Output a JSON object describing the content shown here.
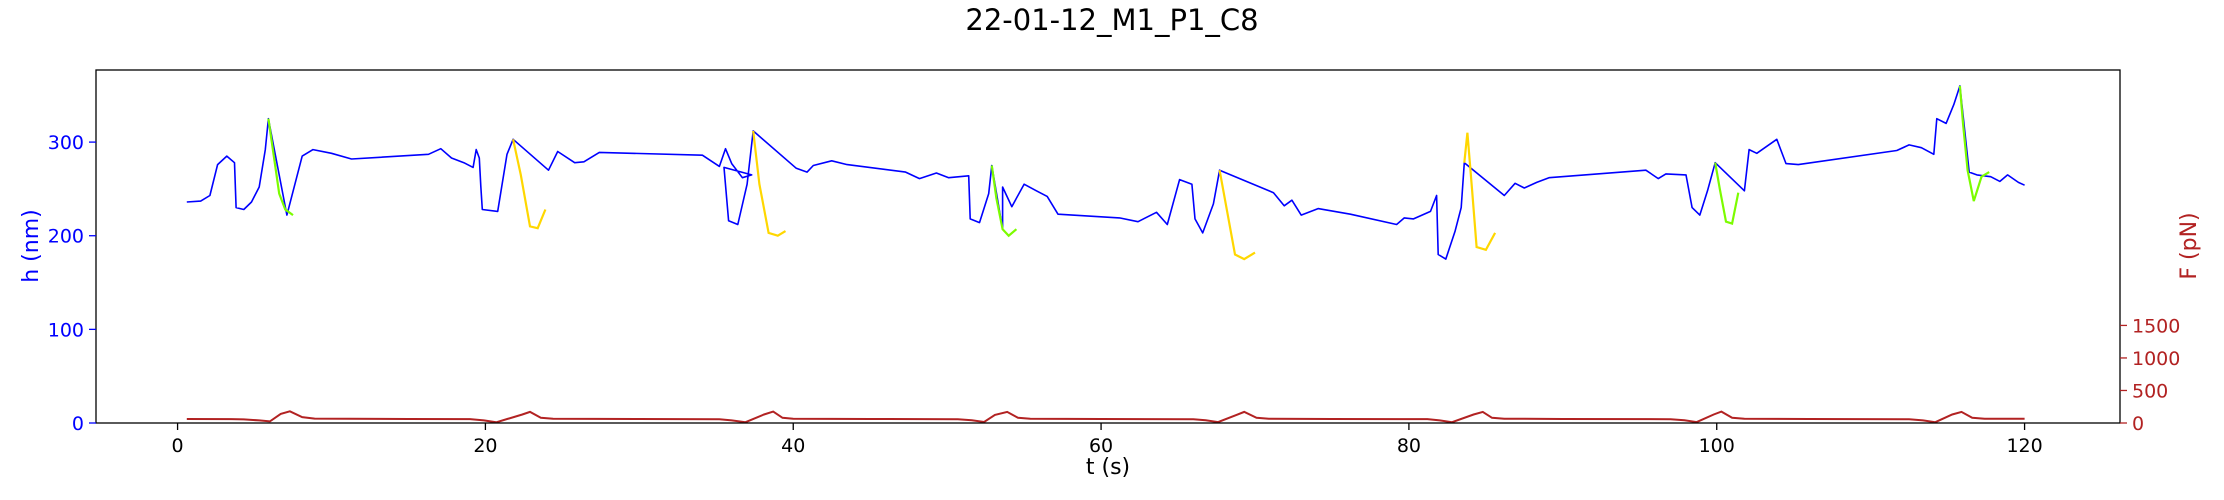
{
  "chart_data": {
    "type": "line",
    "title": "22-01-12_M1_P1_C8",
    "xlabel": "t (s)",
    "ylabel_left": "h (nm)",
    "ylabel_right": "F (pN)",
    "xlim": [
      -5.3,
      126.2
    ],
    "ylim_left": [
      0,
      377
    ],
    "ylim_right": [
      0,
      5427
    ],
    "xticks": [
      0,
      20,
      40,
      60,
      80,
      100,
      120
    ],
    "yticks_left": [
      0,
      100,
      200,
      300
    ],
    "yticks_right": [
      0,
      500,
      1000,
      1500
    ],
    "grid": false,
    "colors": {
      "height": "#0000ff",
      "approach": "#7cfc00",
      "retract": "#ffd700",
      "force": "#b22222",
      "left_axis": "#0000ff",
      "right_axis": "#b22222"
    },
    "series": [
      {
        "color_key": "height",
        "points": [
          [
            0.6,
            236
          ],
          [
            1.5,
            237
          ],
          [
            2.1,
            243
          ],
          [
            2.6,
            276
          ],
          [
            3.2,
            285
          ],
          [
            3.7,
            278
          ],
          [
            3.8,
            230
          ],
          [
            4.3,
            228
          ],
          [
            4.8,
            236
          ],
          [
            5.3,
            252
          ],
          [
            5.7,
            292
          ],
          [
            5.9,
            325
          ],
          [
            7.1,
            222
          ],
          [
            8.1,
            285
          ],
          [
            8.8,
            292
          ],
          [
            10.0,
            288
          ],
          [
            11.3,
            282
          ],
          [
            16.3,
            287
          ],
          [
            17.1,
            293
          ],
          [
            17.8,
            283
          ],
          [
            18.6,
            278
          ],
          [
            19.2,
            273
          ],
          [
            19.4,
            292
          ],
          [
            19.6,
            283
          ],
          [
            19.7,
            253
          ],
          [
            19.8,
            228
          ],
          [
            20.8,
            226
          ],
          [
            21.4,
            287
          ],
          [
            21.8,
            303
          ],
          [
            24.1,
            270
          ],
          [
            24.7,
            290
          ],
          [
            25.8,
            278
          ],
          [
            26.4,
            279
          ],
          [
            27.4,
            289
          ],
          [
            34.1,
            286
          ],
          [
            35.2,
            274
          ],
          [
            35.6,
            293
          ],
          [
            36.0,
            277
          ],
          [
            36.7,
            262
          ],
          [
            37.3,
            265
          ],
          [
            35.5,
            273
          ],
          [
            35.8,
            216
          ],
          [
            36.4,
            212
          ],
          [
            37.0,
            255
          ],
          [
            37.4,
            312
          ],
          [
            40.2,
            272
          ],
          [
            40.9,
            268
          ],
          [
            41.3,
            275
          ],
          [
            42.5,
            280
          ],
          [
            43.5,
            276
          ],
          [
            47.3,
            268
          ],
          [
            48.2,
            261
          ],
          [
            49.3,
            267
          ],
          [
            50.1,
            262
          ],
          [
            51.4,
            264
          ],
          [
            51.5,
            218
          ],
          [
            52.1,
            214
          ],
          [
            52.7,
            245
          ],
          [
            52.9,
            275
          ],
          [
            53.6,
            207
          ],
          [
            53.6,
            252
          ],
          [
            54.2,
            231
          ],
          [
            55.0,
            255
          ],
          [
            55.8,
            248
          ],
          [
            56.5,
            242
          ],
          [
            57.2,
            223
          ],
          [
            61.2,
            219
          ],
          [
            62.4,
            215
          ],
          [
            63.6,
            225
          ],
          [
            64.3,
            212
          ],
          [
            65.1,
            260
          ],
          [
            65.9,
            255
          ],
          [
            66.1,
            218
          ],
          [
            66.6,
            203
          ],
          [
            67.3,
            234
          ],
          [
            67.7,
            270
          ],
          [
            71.2,
            246
          ],
          [
            71.9,
            232
          ],
          [
            72.4,
            238
          ],
          [
            73.0,
            222
          ],
          [
            74.1,
            229
          ],
          [
            76.2,
            223
          ],
          [
            79.2,
            212
          ],
          [
            79.7,
            219
          ],
          [
            80.3,
            218
          ],
          [
            81.4,
            226
          ],
          [
            81.8,
            243
          ],
          [
            81.9,
            180
          ],
          [
            82.4,
            175
          ],
          [
            83.0,
            205
          ],
          [
            83.4,
            230
          ],
          [
            83.6,
            278
          ],
          [
            86.2,
            243
          ],
          [
            86.9,
            256
          ],
          [
            87.5,
            251
          ],
          [
            88.3,
            257
          ],
          [
            89.1,
            262
          ],
          [
            95.4,
            270
          ],
          [
            96.2,
            261
          ],
          [
            96.7,
            266
          ],
          [
            98.0,
            265
          ],
          [
            98.4,
            230
          ],
          [
            98.9,
            222
          ],
          [
            99.4,
            248
          ],
          [
            99.9,
            278
          ],
          [
            101.8,
            248
          ],
          [
            102.1,
            292
          ],
          [
            102.6,
            288
          ],
          [
            103.3,
            296
          ],
          [
            103.9,
            303
          ],
          [
            104.5,
            277
          ],
          [
            105.3,
            276
          ],
          [
            111.7,
            291
          ],
          [
            112.5,
            297
          ],
          [
            113.3,
            294
          ],
          [
            114.1,
            287
          ],
          [
            114.3,
            325
          ],
          [
            114.9,
            320
          ],
          [
            115.4,
            340
          ],
          [
            115.8,
            360
          ],
          [
            116.4,
            268
          ],
          [
            116.9,
            265
          ],
          [
            117.8,
            263
          ],
          [
            118.4,
            258
          ],
          [
            118.9,
            265
          ],
          [
            119.6,
            257
          ],
          [
            120.0,
            254
          ]
        ]
      }
    ],
    "approach_segments": [
      [
        [
          5.9,
          325
        ],
        [
          6.3,
          280
        ],
        [
          6.6,
          245
        ],
        [
          7.0,
          228
        ],
        [
          7.5,
          222
        ]
      ],
      [
        [
          52.9,
          275
        ],
        [
          53.2,
          240
        ],
        [
          53.6,
          207
        ],
        [
          54.0,
          200
        ],
        [
          54.5,
          207
        ]
      ],
      [
        [
          99.9,
          278
        ],
        [
          100.2,
          250
        ],
        [
          100.6,
          215
        ],
        [
          101.0,
          213
        ],
        [
          101.4,
          246
        ]
      ],
      [
        [
          115.8,
          360
        ],
        [
          116.0,
          320
        ],
        [
          116.3,
          270
        ],
        [
          116.7,
          237
        ],
        [
          117.2,
          263
        ],
        [
          117.7,
          268
        ]
      ]
    ],
    "retract_segments": [
      [
        [
          21.8,
          303
        ],
        [
          22.3,
          265
        ],
        [
          22.9,
          210
        ],
        [
          23.4,
          208
        ],
        [
          23.9,
          228
        ]
      ],
      [
        [
          37.4,
          312
        ],
        [
          37.8,
          255
        ],
        [
          38.4,
          203
        ],
        [
          39.0,
          200
        ],
        [
          39.5,
          205
        ]
      ],
      [
        [
          67.7,
          270
        ],
        [
          68.2,
          225
        ],
        [
          68.7,
          180
        ],
        [
          69.3,
          175
        ],
        [
          70.0,
          182
        ]
      ],
      [
        [
          83.6,
          278
        ],
        [
          83.8,
          310
        ],
        [
          84.1,
          250
        ],
        [
          84.4,
          188
        ],
        [
          85.0,
          185
        ],
        [
          85.6,
          203
        ]
      ]
    ],
    "force_series": {
      "color_key": "force",
      "points": [
        [
          0.6,
          62
        ],
        [
          3.5,
          60
        ],
        [
          4.3,
          55
        ],
        [
          5.3,
          40
        ],
        [
          6.0,
          25
        ],
        [
          6.7,
          140
        ],
        [
          7.3,
          180
        ],
        [
          8.1,
          90
        ],
        [
          8.9,
          68
        ],
        [
          15,
          62
        ],
        [
          19,
          60
        ],
        [
          19.9,
          40
        ],
        [
          20.7,
          10
        ],
        [
          22.4,
          130
        ],
        [
          22.9,
          170
        ],
        [
          23.6,
          80
        ],
        [
          24.4,
          66
        ],
        [
          30,
          62
        ],
        [
          35.2,
          58
        ],
        [
          36.0,
          40
        ],
        [
          36.9,
          12
        ],
        [
          38.1,
          130
        ],
        [
          38.7,
          175
        ],
        [
          39.3,
          80
        ],
        [
          40.0,
          66
        ],
        [
          45,
          62
        ],
        [
          50.7,
          58
        ],
        [
          51.6,
          42
        ],
        [
          52.4,
          15
        ],
        [
          53.1,
          125
        ],
        [
          53.9,
          170
        ],
        [
          54.6,
          80
        ],
        [
          55.4,
          66
        ],
        [
          60,
          62
        ],
        [
          66.0,
          58
        ],
        [
          66.8,
          42
        ],
        [
          67.6,
          14
        ],
        [
          68.8,
          125
        ],
        [
          69.3,
          170
        ],
        [
          70.1,
          80
        ],
        [
          70.9,
          66
        ],
        [
          75,
          62
        ],
        [
          81.2,
          60
        ],
        [
          82.0,
          40
        ],
        [
          82.8,
          12
        ],
        [
          84.2,
          130
        ],
        [
          84.8,
          170
        ],
        [
          85.4,
          80
        ],
        [
          86.2,
          66
        ],
        [
          90,
          62
        ],
        [
          97.0,
          58
        ],
        [
          97.9,
          42
        ],
        [
          98.7,
          14
        ],
        [
          99.8,
          130
        ],
        [
          100.3,
          175
        ],
        [
          101.0,
          80
        ],
        [
          101.8,
          66
        ],
        [
          106,
          62
        ],
        [
          112.5,
          58
        ],
        [
          113.4,
          40
        ],
        [
          114.2,
          12
        ],
        [
          115.3,
          130
        ],
        [
          115.9,
          170
        ],
        [
          116.6,
          80
        ],
        [
          117.4,
          66
        ],
        [
          120,
          66
        ]
      ]
    }
  }
}
